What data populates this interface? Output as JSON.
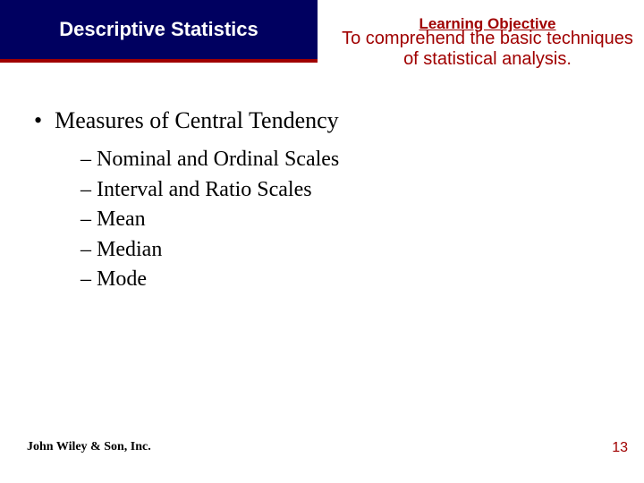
{
  "header": {
    "title": "Descriptive Statistics",
    "objective_heading": "Learning Objective",
    "objective_text": "To comprehend the basic techniques of statistical analysis."
  },
  "content": {
    "main_heading": "Measures of Central Tendency",
    "sub_items": [
      "– Nominal and Ordinal Scales",
      "– Interval and Ratio Scales",
      "– Mean",
      "– Median",
      "– Mode"
    ]
  },
  "footer": {
    "publisher": "John Wiley & Son, Inc.",
    "page_number": "13"
  },
  "colors": {
    "title_bg": "#000060",
    "accent": "#a00000",
    "text": "#000000",
    "title_text": "#ffffff",
    "background": "#ffffff"
  },
  "typography": {
    "title_font": "Arial",
    "title_size_pt": 22,
    "body_font": "Times New Roman",
    "main_bullet_size_pt": 26,
    "sub_bullet_size_pt": 24,
    "footer_size_pt": 14
  }
}
